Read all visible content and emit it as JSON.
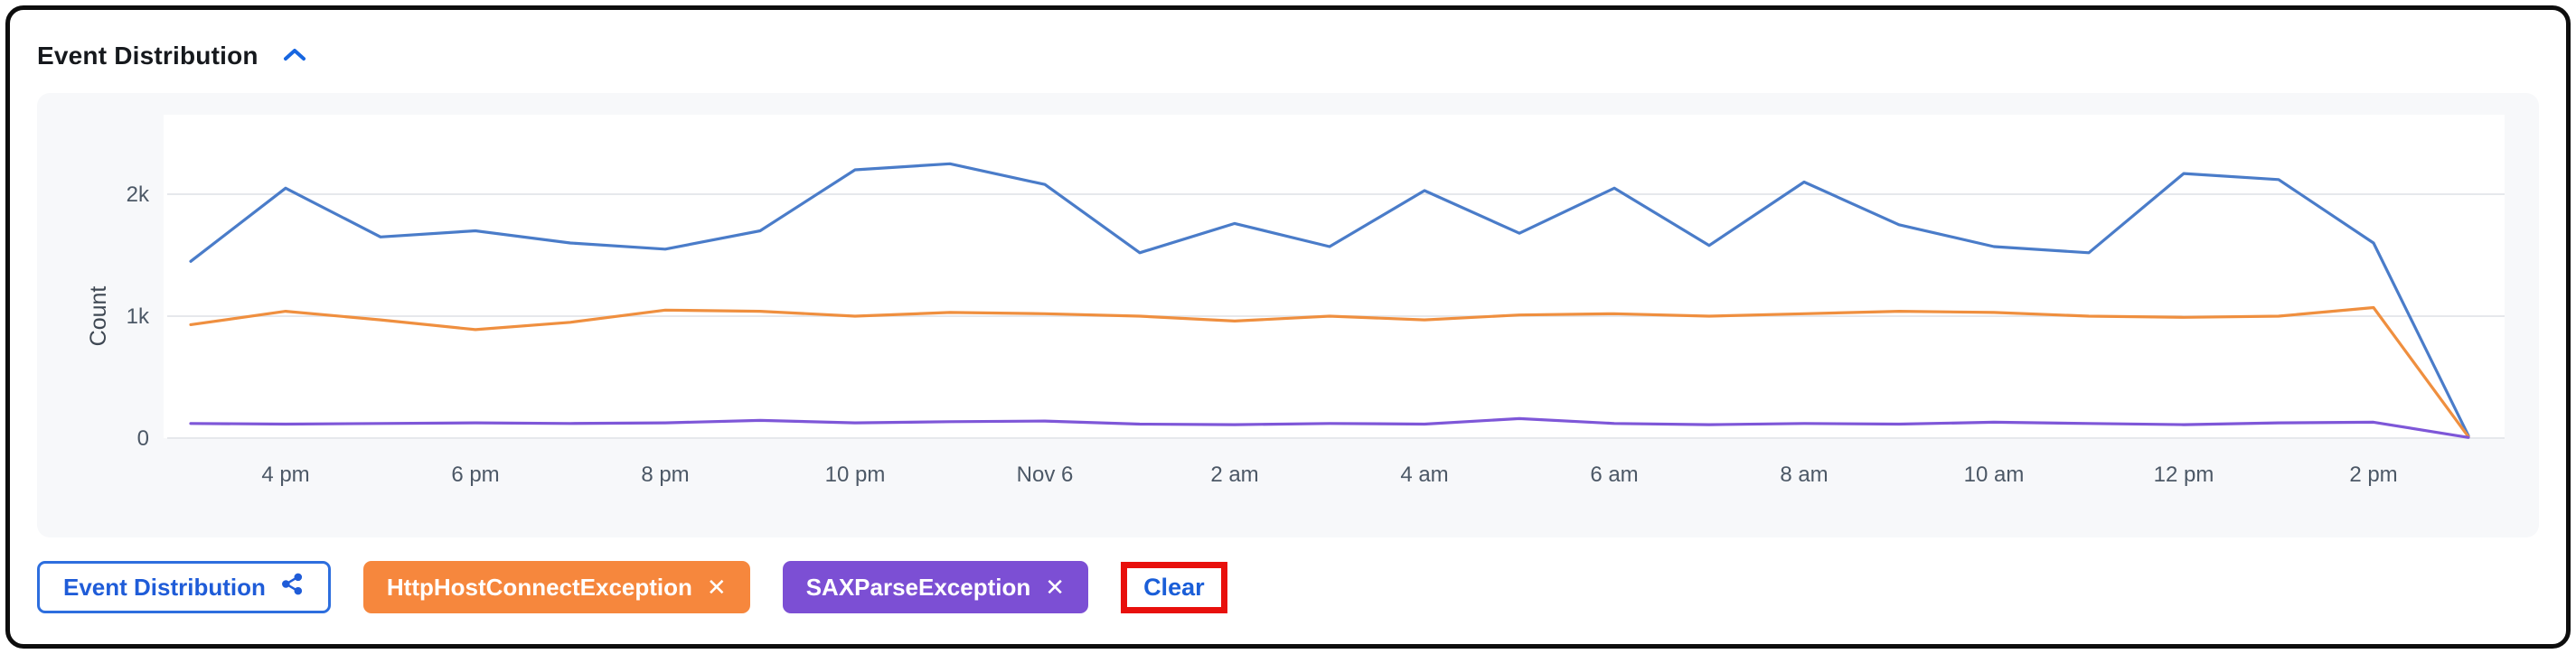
{
  "header": {
    "title": "Event Distribution",
    "collapse_icon": "chevron-up"
  },
  "chart_data": {
    "type": "line",
    "title": "Event Distribution",
    "xlabel": "",
    "ylabel": "Count",
    "ylim": [
      0,
      2500
    ],
    "grid": "horizontal-only",
    "legend_position": "none",
    "x_description": "Hourly buckets from Nov 5 3 pm to Nov 6 3 pm",
    "yticks": [
      {
        "value": 0,
        "label": "0"
      },
      {
        "value": 1000,
        "label": "1k"
      },
      {
        "value": 2000,
        "label": "2k"
      }
    ],
    "x_ticks": [
      {
        "index": 1,
        "label": "4 pm"
      },
      {
        "index": 3,
        "label": "6 pm"
      },
      {
        "index": 5,
        "label": "8 pm"
      },
      {
        "index": 7,
        "label": "10 pm"
      },
      {
        "index": 9,
        "label": "Nov 6"
      },
      {
        "index": 11,
        "label": "2 am"
      },
      {
        "index": 13,
        "label": "4 am"
      },
      {
        "index": 15,
        "label": "6 am"
      },
      {
        "index": 17,
        "label": "8 am"
      },
      {
        "index": 19,
        "label": "10 am"
      },
      {
        "index": 21,
        "label": "12 pm"
      },
      {
        "index": 23,
        "label": "2 pm"
      }
    ],
    "series": [
      {
        "name": "Event Distribution",
        "color": "#4a7cc9",
        "values": [
          1450,
          2050,
          1650,
          1700,
          1600,
          1550,
          1700,
          2200,
          2250,
          2080,
          1520,
          1760,
          1570,
          2030,
          1680,
          2050,
          1580,
          2100,
          1750,
          1570,
          1520,
          2170,
          2120,
          1600,
          20
        ]
      },
      {
        "name": "HttpHostConnectException",
        "color": "#ef8f3f",
        "values": [
          930,
          1040,
          970,
          890,
          950,
          1050,
          1040,
          1000,
          1030,
          1020,
          1000,
          960,
          1000,
          970,
          1010,
          1020,
          1000,
          1020,
          1040,
          1030,
          1000,
          990,
          1000,
          1070,
          10
        ]
      },
      {
        "name": "SAXParseException",
        "color": "#7e57d8",
        "values": [
          120,
          115,
          120,
          125,
          120,
          125,
          145,
          125,
          135,
          140,
          115,
          110,
          120,
          115,
          160,
          120,
          110,
          120,
          115,
          130,
          120,
          110,
          125,
          130,
          5
        ]
      }
    ]
  },
  "filters": {
    "chart_chip": {
      "label": "Event Distribution",
      "icon": "share-nodes"
    },
    "chips": [
      {
        "label": "HttpHostConnectException",
        "close": "✕"
      },
      {
        "label": "SAXParseException",
        "close": "✕"
      }
    ],
    "clear_label": "Clear"
  },
  "colors": {
    "accent_blue": "#1f62d9",
    "chip_orange": "#f6873d",
    "chip_purple": "#7c4fd4",
    "annotation_red": "#e8100c",
    "grid_line": "#e6e8ec"
  }
}
